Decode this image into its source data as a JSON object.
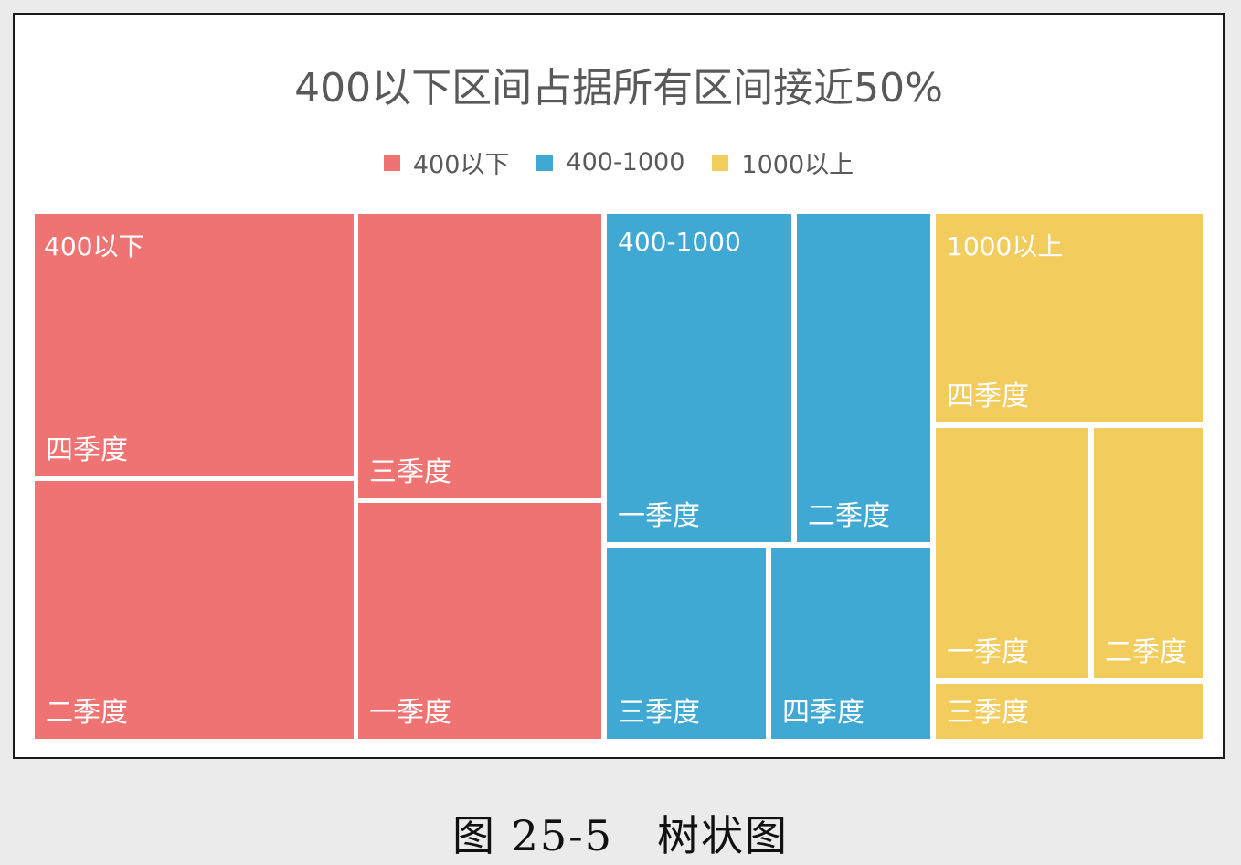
{
  "chart_data": {
    "type": "treemap",
    "title": "400以下区间占据所有区间接近50%",
    "legend_position": "top-center",
    "groups": [
      {
        "name": "400以下",
        "color": "#f07373",
        "items": [
          {
            "label": "四季度"
          },
          {
            "label": "二季度"
          },
          {
            "label": "三季度"
          },
          {
            "label": "一季度"
          }
        ]
      },
      {
        "name": "400-1000",
        "color": "#40a9d3",
        "items": [
          {
            "label": "一季度"
          },
          {
            "label": "二季度"
          },
          {
            "label": "三季度"
          },
          {
            "label": "四季度"
          }
        ]
      },
      {
        "name": "1000以上",
        "color": "#f2cc5d",
        "items": [
          {
            "label": "四季度"
          },
          {
            "label": "一季度"
          },
          {
            "label": "二季度"
          },
          {
            "label": "三季度"
          }
        ]
      }
    ]
  },
  "caption": "图 25-5　树状图"
}
